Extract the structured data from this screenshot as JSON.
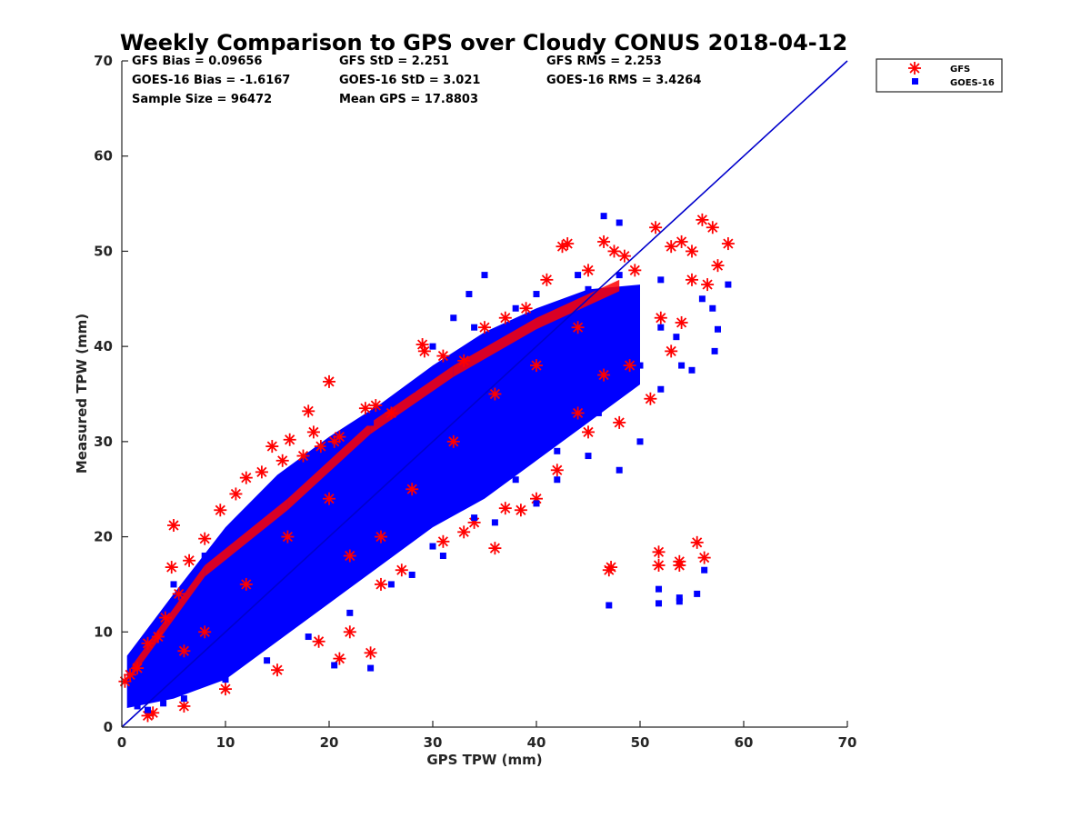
{
  "chart_data": {
    "type": "scatter",
    "title": "Weekly Comparison to GPS over Cloudy CONUS 2018-04-12",
    "xlabel": "GPS TPW (mm)",
    "ylabel": "Measured TPW (mm)",
    "xlim": [
      0,
      70
    ],
    "ylim": [
      0,
      70
    ],
    "xticks": [
      "0",
      "10",
      "20",
      "30",
      "40",
      "50",
      "60",
      "70"
    ],
    "yticks": [
      "0",
      "10",
      "20",
      "30",
      "40",
      "50",
      "60",
      "70"
    ],
    "grid": false,
    "legend_position": "outside top-right",
    "stats": {
      "gfs_bias": "GFS Bias = 0.09656",
      "gfs_std": "GFS StD = 2.251",
      "gfs_rms": "GFS RMS = 2.253",
      "goes_bias": "GOES-16 Bias = -1.6167",
      "goes_std": "GOES-16 StD = 3.021",
      "goes_rms": "GOES-16 RMS = 3.4264",
      "sample_size": "Sample Size = 96472",
      "mean_gps": "Mean GPS = 17.8803"
    },
    "reference_line": {
      "x": [
        0,
        70
      ],
      "y": [
        0,
        70
      ],
      "color": "#0000cc"
    },
    "series": [
      {
        "name": "GFS",
        "marker": "asterisk",
        "color": "#ff0000",
        "points": [
          [
            0.3,
            4.8
          ],
          [
            0.8,
            5.5
          ],
          [
            1.5,
            6.2
          ],
          [
            2.5,
            8.8
          ],
          [
            3.5,
            9.5
          ],
          [
            4.2,
            11.5
          ],
          [
            5,
            21.2
          ],
          [
            4.8,
            16.8
          ],
          [
            5.5,
            14
          ],
          [
            6.5,
            17.5
          ],
          [
            8,
            19.8
          ],
          [
            9.5,
            22.8
          ],
          [
            11,
            24.5
          ],
          [
            12,
            26.2
          ],
          [
            13.5,
            26.8
          ],
          [
            14.5,
            29.5
          ],
          [
            15.5,
            28
          ],
          [
            16.2,
            30.2
          ],
          [
            17.5,
            28.5
          ],
          [
            18,
            33.2
          ],
          [
            18.5,
            31
          ],
          [
            19.2,
            29.5
          ],
          [
            20,
            36.3
          ],
          [
            20.5,
            30
          ],
          [
            21,
            30.5
          ],
          [
            23.5,
            33.5
          ],
          [
            24.5,
            33.8
          ],
          [
            26,
            33
          ],
          [
            29,
            40.2
          ],
          [
            29.2,
            39.5
          ],
          [
            31,
            39
          ],
          [
            33,
            38.5
          ],
          [
            35,
            42
          ],
          [
            37,
            43
          ],
          [
            39,
            44
          ],
          [
            41,
            47
          ],
          [
            42.5,
            50.5
          ],
          [
            43,
            50.8
          ],
          [
            45,
            48
          ],
          [
            46.5,
            51
          ],
          [
            47.5,
            50
          ],
          [
            48.5,
            49.5
          ],
          [
            49.5,
            48
          ],
          [
            51.5,
            52.5
          ],
          [
            53,
            50.5
          ],
          [
            54,
            51
          ],
          [
            55,
            50
          ],
          [
            56,
            53.3
          ],
          [
            57,
            52.5
          ],
          [
            57.5,
            48.5
          ],
          [
            58.5,
            50.8
          ],
          [
            56.5,
            46.5
          ],
          [
            55,
            47
          ],
          [
            54,
            42.5
          ],
          [
            53,
            39.5
          ],
          [
            52,
            43
          ],
          [
            51,
            34.5
          ],
          [
            49,
            38
          ],
          [
            48,
            32
          ],
          [
            46.5,
            37
          ],
          [
            45,
            31
          ],
          [
            44,
            33
          ],
          [
            42,
            27
          ],
          [
            40,
            24
          ],
          [
            38.5,
            22.8
          ],
          [
            37,
            23
          ],
          [
            36,
            18.8
          ],
          [
            34,
            21.5
          ],
          [
            33,
            20.5
          ],
          [
            31,
            19.5
          ],
          [
            27,
            16.5
          ],
          [
            25,
            15
          ],
          [
            24,
            7.8
          ],
          [
            21,
            7.2
          ],
          [
            22,
            10
          ],
          [
            19,
            9
          ],
          [
            15,
            6
          ],
          [
            10,
            4
          ],
          [
            6,
            2.2
          ],
          [
            3,
            1.5
          ],
          [
            2.5,
            1.2
          ],
          [
            47,
            16.5
          ],
          [
            47.2,
            16.8
          ],
          [
            51.8,
            18.4
          ],
          [
            51.8,
            17
          ],
          [
            53.8,
            17
          ],
          [
            53.8,
            17.4
          ],
          [
            55.5,
            19.4
          ],
          [
            56.2,
            17.8
          ],
          [
            25,
            20
          ],
          [
            28,
            25
          ],
          [
            32,
            30
          ],
          [
            36,
            35
          ],
          [
            40,
            38
          ],
          [
            44,
            42
          ],
          [
            12,
            15
          ],
          [
            16,
            20
          ],
          [
            20,
            24
          ],
          [
            22,
            18
          ],
          [
            8,
            10
          ],
          [
            6,
            8
          ]
        ]
      },
      {
        "name": "GOES-16",
        "marker": "square",
        "color": "#0000ff",
        "points": [
          [
            47,
            12.8
          ],
          [
            51.8,
            13
          ],
          [
            51.8,
            14.5
          ],
          [
            53.8,
            13.2
          ],
          [
            53.8,
            13.6
          ],
          [
            55.5,
            14
          ],
          [
            56.2,
            16.5
          ],
          [
            58.5,
            46.5
          ],
          [
            57.5,
            41.8
          ],
          [
            57.2,
            39.5
          ],
          [
            46.5,
            53.7
          ],
          [
            48,
            53
          ],
          [
            44,
            47.5
          ],
          [
            35,
            47.5
          ],
          [
            32,
            43
          ],
          [
            33.5,
            45.5
          ],
          [
            24,
            6.2
          ],
          [
            20.5,
            6.5
          ],
          [
            28,
            16
          ],
          [
            31,
            18
          ],
          [
            36,
            21.5
          ],
          [
            40,
            23.5
          ],
          [
            42,
            26
          ],
          [
            45,
            28.5
          ],
          [
            48,
            27
          ],
          [
            50,
            30
          ],
          [
            52,
            35.5
          ],
          [
            54,
            38
          ],
          [
            55,
            37.5
          ],
          [
            53.5,
            41
          ],
          [
            56,
            45
          ],
          [
            57,
            44
          ],
          [
            52,
            47
          ],
          [
            49.5,
            45.5
          ],
          [
            1.5,
            2.2
          ],
          [
            2.5,
            1.8
          ],
          [
            4,
            2.5
          ],
          [
            6,
            3
          ],
          [
            10,
            5
          ],
          [
            14,
            7
          ],
          [
            18,
            9.5
          ],
          [
            22,
            12
          ],
          [
            26,
            15
          ],
          [
            30,
            19
          ],
          [
            34,
            22
          ],
          [
            38,
            26
          ],
          [
            42,
            29
          ],
          [
            46,
            33
          ],
          [
            50,
            38
          ],
          [
            52,
            42
          ],
          [
            5,
            15
          ],
          [
            8,
            18
          ],
          [
            12,
            22
          ],
          [
            16,
            26
          ],
          [
            20,
            29.5
          ],
          [
            24,
            32
          ],
          [
            28,
            35.5
          ],
          [
            30,
            40
          ],
          [
            34,
            42
          ],
          [
            38,
            44
          ],
          [
            40,
            45.5
          ],
          [
            45,
            46
          ],
          [
            48,
            47.5
          ]
        ]
      }
    ]
  }
}
